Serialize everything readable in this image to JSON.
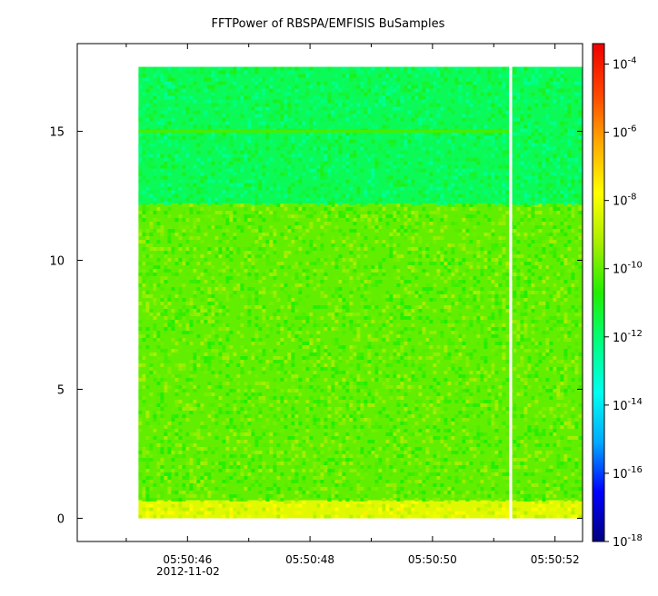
{
  "chart_data": {
    "type": "heatmap",
    "title": "FFTPower of RBSPA/EMFISIS  BuSamples",
    "xlabel": "",
    "ylabel": "",
    "x_date_label": "2012-11-02",
    "x_ticks": [
      "05:50:46",
      "05:50:48",
      "05:50:50",
      "05:50:52"
    ],
    "x_minor_tick_seconds": [
      45.0,
      47.0,
      49.0,
      51.0
    ],
    "x_tick_seconds": [
      46.0,
      48.0,
      50.0,
      52.0
    ],
    "x_range_seconds": [
      44.2,
      52.45
    ],
    "data_x_range_seconds": [
      45.2,
      52.45
    ],
    "gap_x_seconds": [
      51.25,
      51.3
    ],
    "y_ticks": [
      "0",
      "5",
      "10",
      "15"
    ],
    "y_tick_values": [
      0,
      5,
      10,
      15
    ],
    "ylim": [
      -0.9,
      18.4
    ],
    "data_y_range": [
      0,
      17.5
    ],
    "bands": [
      {
        "y_range": [
          0,
          0.7
        ],
        "level_exp": -8.3
      },
      {
        "y_range": [
          0.7,
          12.2
        ],
        "level_exp": -10.0
      },
      {
        "y_range": [
          12.2,
          17.5
        ],
        "level_exp": -11.7
      }
    ],
    "line_feature": {
      "y": 15.0,
      "level_exp": -10.3
    },
    "colorbar": {
      "scale": "log",
      "min_exp": -18,
      "max_exp": -3.4,
      "tick_exps": [
        -4,
        -6,
        -8,
        -10,
        -12,
        -14,
        -16,
        -18
      ],
      "tick_base": "10",
      "tick_exponent_labels": [
        "-4",
        "-6",
        "-8",
        "-10",
        "-12",
        "-14",
        "-16",
        "-18"
      ],
      "colormap": [
        "#00007f",
        "#0000ff",
        "#00aaff",
        "#00ffee",
        "#00ff7f",
        "#22ee00",
        "#a8ee00",
        "#ffff00",
        "#ffaa00",
        "#ff4400",
        "#ee0000"
      ]
    }
  }
}
